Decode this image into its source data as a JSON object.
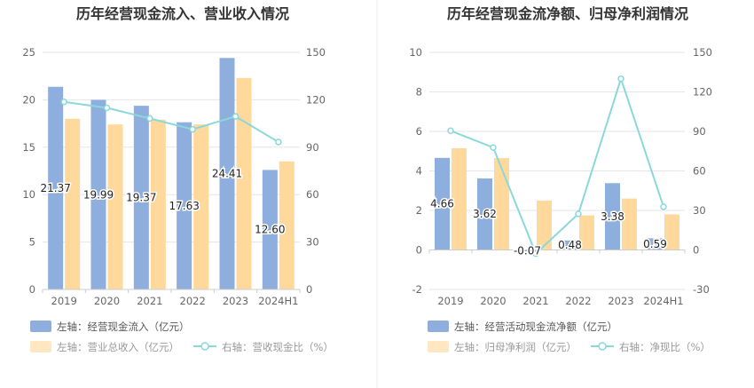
{
  "chart_data": [
    {
      "type": "bar",
      "title": "历年经营现金流入、营业收入情况",
      "categories": [
        "2019",
        "2020",
        "2021",
        "2022",
        "2023",
        "2024H1"
      ],
      "left_axis": {
        "ylim": [
          0,
          25
        ],
        "ticks": [
          "0",
          "5",
          "10",
          "15",
          "20",
          "25"
        ]
      },
      "right_axis": {
        "ylim": [
          0,
          150
        ],
        "ticks": [
          "0",
          "30",
          "60",
          "90",
          "120",
          "150"
        ]
      },
      "series": [
        {
          "name": "左轴：经营现金流入（亿元）",
          "kind": "bar",
          "axis": "left",
          "color": "#8eaedd",
          "values": [
            21.37,
            19.99,
            19.37,
            17.63,
            24.41,
            12.6
          ],
          "labels": [
            "21.37",
            "19.99",
            "19.37",
            "17.63",
            "24.41",
            "12.60"
          ]
        },
        {
          "name": "左轴：营业总收入（亿元）",
          "kind": "bar",
          "axis": "left",
          "color": "#ffd99b",
          "values": [
            18.0,
            17.4,
            17.9,
            17.4,
            22.3,
            13.5
          ]
        },
        {
          "name": "右轴：营收现金比（%）",
          "kind": "line",
          "axis": "right",
          "color": "#8ad8dc",
          "values": [
            118.7,
            114.9,
            108.2,
            101.3,
            109.5,
            93.3
          ]
        }
      ]
    },
    {
      "type": "bar",
      "title": "历年经营现金流净额、归母净利润情况",
      "categories": [
        "2019",
        "2020",
        "2021",
        "2022",
        "2023",
        "2024H1"
      ],
      "left_axis": {
        "ylim": [
          -2,
          10
        ],
        "ticks": [
          "-2",
          "0",
          "2",
          "4",
          "6",
          "8",
          "10"
        ]
      },
      "right_axis": {
        "ylim": [
          -30,
          150
        ],
        "ticks": [
          "-30",
          "0",
          "30",
          "60",
          "90",
          "120",
          "150"
        ]
      },
      "series": [
        {
          "name": "左轴：经营活动现金流净额（亿元）",
          "kind": "bar",
          "axis": "left",
          "color": "#8eaedd",
          "values": [
            4.66,
            3.62,
            -0.07,
            0.48,
            3.38,
            0.59
          ],
          "labels": [
            "4.66",
            "3.62",
            "-0.07",
            "0.48",
            "3.38",
            "0.59"
          ]
        },
        {
          "name": "左轴：归母净利润（亿元）",
          "kind": "bar",
          "axis": "left",
          "color": "#ffd99b",
          "values": [
            5.15,
            4.65,
            2.5,
            1.75,
            2.6,
            1.8
          ]
        },
        {
          "name": "右轴：净现比（%）",
          "kind": "line",
          "axis": "right",
          "color": "#8ad8dc",
          "values": [
            90.5,
            77.8,
            -2.8,
            27.4,
            130.0,
            32.8
          ]
        }
      ]
    }
  ]
}
